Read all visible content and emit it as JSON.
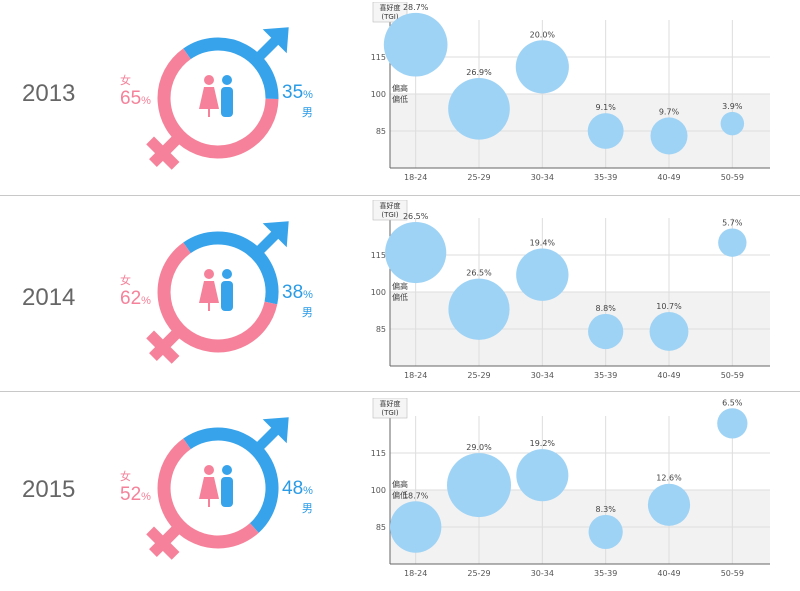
{
  "colors": {
    "female": "#f5829a",
    "male": "#36a3eb",
    "bubble": "#9fd3f5",
    "band": "#f2f2f2",
    "grid": "#dddddd",
    "axis": "#666666"
  },
  "icons": {
    "female_symbol": "female-symbol-icon",
    "male_symbol": "male-symbol-icon",
    "couple": "couple-icon"
  },
  "labels": {
    "female": "女",
    "male": "男",
    "percent": "%",
    "tgi_line1": "喜好度",
    "tgi_line2": "(TGI)",
    "band_line1": "偏高",
    "band_line2": "偏低"
  },
  "panels": [
    {
      "year": "2013",
      "female_pct": "65",
      "male_pct": "35",
      "female_fraction": 0.65
    },
    {
      "year": "2014",
      "female_pct": "62",
      "male_pct": "38",
      "female_fraction": 0.62
    },
    {
      "year": "2015",
      "female_pct": "52",
      "male_pct": "48",
      "female_fraction": 0.52
    }
  ],
  "chart_data": [
    {
      "type": "scatter",
      "ylabel": "喜好度 (TGI)",
      "yticks": [
        85,
        100,
        115
      ],
      "ylim": [
        70,
        130
      ],
      "band": [
        70,
        100
      ],
      "categories": [
        "18-24",
        "25-29",
        "30-34",
        "35-39",
        "40-49",
        "50-59"
      ],
      "y": [
        120,
        94,
        111,
        85,
        83,
        88
      ],
      "size_pct": [
        28.7,
        26.9,
        20.0,
        9.1,
        9.7,
        3.9
      ],
      "labels": [
        "28.7%",
        "26.9%",
        "20.0%",
        "9.1%",
        "9.7%",
        "3.9%"
      ]
    },
    {
      "type": "scatter",
      "ylabel": "喜好度 (TGI)",
      "yticks": [
        85,
        100,
        115
      ],
      "ylim": [
        70,
        130
      ],
      "band": [
        70,
        100
      ],
      "categories": [
        "18-24",
        "25-29",
        "30-34",
        "35-39",
        "40-49",
        "50-59"
      ],
      "y": [
        116,
        93,
        107,
        84,
        84,
        120
      ],
      "size_pct": [
        26.5,
        26.5,
        19.4,
        8.8,
        10.7,
        5.7
      ],
      "labels": [
        "26.5%",
        "26.5%",
        "19.4%",
        "8.8%",
        "10.7%",
        "5.7%"
      ]
    },
    {
      "type": "scatter",
      "ylabel": "喜好度 (TGI)",
      "yticks": [
        85,
        100,
        115
      ],
      "ylim": [
        70,
        130
      ],
      "band": [
        70,
        100
      ],
      "categories": [
        "18-24",
        "25-29",
        "30-34",
        "35-39",
        "40-49",
        "50-59"
      ],
      "y": [
        85,
        102,
        106,
        83,
        94,
        127
      ],
      "size_pct": [
        18.7,
        29.0,
        19.2,
        8.3,
        12.6,
        6.5
      ],
      "labels": [
        "18.7%",
        "29.0%",
        "19.2%",
        "8.3%",
        "12.6%",
        "6.5%"
      ]
    }
  ]
}
